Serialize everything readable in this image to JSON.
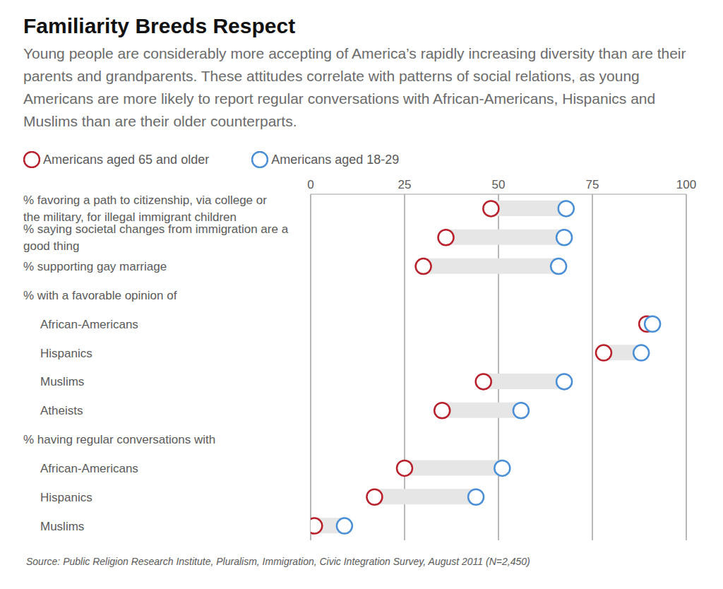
{
  "chart_data": {
    "type": "dumbbell",
    "title": "Familiarity Breeds Respect",
    "subtitle": "Young people are considerably more accepting of America’s rapidly increasing diversity than are their parents and grandparents. These attitudes correlate with patterns of social relations, as young Americans are more likely to report regular conversations with African-Americans, Hispanics and Muslims than are their older counterparts.",
    "source": "Source: Public Religion Research Institute, Pluralism, Immigration, Civic Integration Survey, August 2011 (N=2,450)",
    "categories": [
      "% favoring a path to citizenship, via college or the military, for illegal immigrant children",
      "% saying societal changes from immigration are a good thing",
      "% supporting gay marriage",
      "% with a favorable opinion of",
      "African-Americans",
      "Hispanics",
      "Muslims",
      "Atheists",
      "% having regular conversations with",
      "African-Americans",
      "Hispanics",
      "Muslims"
    ],
    "series": [
      {
        "name": "Americans aged 65 and older",
        "color": "#b8202c",
        "marker": "circle",
        "values": [
          48,
          36,
          30,
          null,
          89.5,
          78,
          46,
          35,
          null,
          25,
          17,
          1
        ]
      },
      {
        "name": "Americans aged 18-29",
        "color": "#4a8fd6",
        "marker": "circle",
        "values": [
          68,
          67.5,
          66,
          null,
          91,
          88,
          67.5,
          56,
          null,
          51,
          44,
          9
        ]
      }
    ],
    "xlim": [
      0,
      100
    ],
    "xticks": [
      0,
      25,
      50,
      75,
      100
    ],
    "grid": true,
    "legend": "top left"
  }
}
